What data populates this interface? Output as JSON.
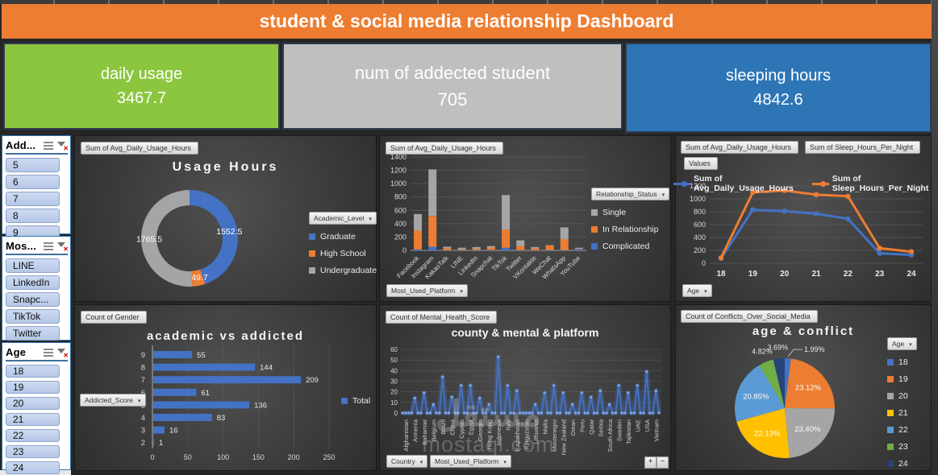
{
  "banner": {
    "title": "student & social media relationship Dashboard"
  },
  "kpis": [
    {
      "label": "daily usage",
      "value": "3467.7",
      "color": "#8CC63F"
    },
    {
      "label": "num of addected student",
      "value": "705",
      "color": "#BFBFBF"
    },
    {
      "label": "sleeping hours",
      "value": "4842.6",
      "color": "#2E75B6"
    }
  ],
  "slicers": [
    {
      "title": "Add...",
      "items": [
        "5",
        "6",
        "7",
        "8",
        "9"
      ]
    },
    {
      "title": "Mos...",
      "items": [
        "LINE",
        "LinkedIn",
        "Snapc...",
        "TikTok",
        "Twitter"
      ]
    },
    {
      "title": "Age",
      "items": [
        "18",
        "19",
        "20",
        "21",
        "22",
        "23",
        "24"
      ]
    }
  ],
  "ui": {
    "zoom_in": "+",
    "zoom_out": "−"
  },
  "watermark": {
    "text_primary": "مستقل",
    "text_secondary": "mostaql.com"
  },
  "chart_data": [
    {
      "type": "pie",
      "subtype": "donut",
      "title": "Usage Hours",
      "field_button": "Sum of Avg_Daily_Usage_Hours",
      "legend_title": "Academic_Level",
      "legend_position": "right",
      "labels": [
        "Graduate",
        "High School",
        "Undergraduate"
      ],
      "values": [
        1552.5,
        149.7,
        1765.5
      ],
      "value_labels": [
        "1552.5",
        "149.7",
        "1765.5"
      ],
      "colors": [
        "#4472C4",
        "#ED7D31",
        "#A5A5A5"
      ]
    },
    {
      "type": "bar",
      "subtype": "stacked-column",
      "field_button": "Sum of Avg_Daily_Usage_Hours",
      "axis_button": "Most_Used_Platform",
      "legend_title": "Relationship_Status",
      "legend_position": "right",
      "categories": [
        "Facebook",
        "Instagram",
        "KakaoTalk",
        "LINE",
        "LinkedIn",
        "Snapchat",
        "TikTok",
        "Twitter",
        "VKontakte",
        "WeChat",
        "WhatsApp",
        "YouTube"
      ],
      "series": [
        {
          "name": "Complicated",
          "color": "#4472C4",
          "values": [
            15,
            55,
            5,
            3,
            5,
            8,
            40,
            5,
            5,
            5,
            5,
            20
          ]
        },
        {
          "name": "In Relationship",
          "color": "#ED7D31",
          "values": [
            280,
            460,
            30,
            12,
            20,
            35,
            270,
            60,
            25,
            70,
            165,
            5
          ]
        },
        {
          "name": "Single",
          "color": "#A5A5A5",
          "values": [
            250,
            700,
            20,
            25,
            25,
            22,
            520,
            85,
            20,
            5,
            175,
            15
          ]
        }
      ],
      "ylim": [
        0,
        1400
      ],
      "ystep": 200,
      "grid": true
    },
    {
      "type": "line",
      "field_buttons": [
        "Sum of Avg_Daily_Usage_Hours",
        "Sum of Sleep_Hours_Per_Night"
      ],
      "values_button": "Values",
      "axis_button": "Age",
      "legend_position": "top",
      "categories": [
        "18",
        "19",
        "20",
        "21",
        "22",
        "23",
        "24"
      ],
      "series": [
        {
          "name": "Sum of Avg_Daily_Usage_Hours",
          "color": "#4472C4",
          "values": [
            75,
            830,
            810,
            770,
            690,
            155,
            130
          ]
        },
        {
          "name": "Sum of Sleep_Hours_Per_Night",
          "color": "#ED7D31",
          "values": [
            85,
            1100,
            1130,
            1065,
            1040,
            235,
            180
          ]
        }
      ],
      "ylim": [
        0,
        1200
      ],
      "ystep": 200,
      "grid": true
    },
    {
      "type": "bar",
      "subtype": "horizontal",
      "title": "academic vs addicted",
      "field_button": "Count of Gender",
      "axis_button": "Addicted_Score",
      "legend": [
        "Total"
      ],
      "legend_position": "right",
      "categories": [
        "9",
        "8",
        "7",
        "6",
        "5",
        "4",
        "3",
        "2"
      ],
      "values": [
        55,
        144,
        209,
        61,
        136,
        83,
        16,
        1
      ],
      "value_labels": [
        "55",
        "144",
        "209",
        "61",
        "136",
        "83",
        "16",
        "1"
      ],
      "color": "#4472C4",
      "xlim": [
        0,
        250
      ],
      "xstep": 50,
      "grid": true
    },
    {
      "type": "line",
      "subtype": "spiky-glow",
      "title": "county & mental & platform",
      "field_button": "Count of Mental_Health_Score",
      "axis_buttons": [
        "Country",
        "Most_Used_Platform"
      ],
      "categories": [
        "Afghanistan",
        "Armenia",
        "Bahamas",
        "Belgium",
        "Brazil",
        "China",
        "Cyprus",
        "Egypt",
        "Georgia",
        "Hong Kong",
        "Indonesia",
        "Italy",
        "Kazakhstan",
        "Kyrgyzstan",
        "Lithuania",
        "Malta",
        "Montenegro",
        "New Zealand",
        "Oman",
        "Peru",
        "Qatar",
        "Serbia",
        "South Africa",
        "Sweden",
        "Tajikistan",
        "UAE",
        "USA",
        "Vietnam"
      ],
      "peak_values": [
        0,
        14,
        19,
        8,
        34,
        15,
        26,
        26,
        14,
        8,
        53,
        26,
        21,
        0,
        8,
        19,
        26,
        19,
        8,
        19,
        15,
        21,
        8,
        26,
        19,
        26,
        39,
        21
      ],
      "color": "#4472C4",
      "ylim": [
        0,
        60
      ],
      "ystep": 10,
      "grid": true
    },
    {
      "type": "pie",
      "title": "age & conflict",
      "field_button": "Count of Conflicts_Over_Social_Media",
      "legend_title": "Age",
      "legend_position": "right",
      "labels": [
        "18",
        "19",
        "20",
        "21",
        "22",
        "23",
        "24"
      ],
      "values": [
        1.99,
        23.12,
        23.4,
        22.13,
        20.85,
        4.82,
        3.69
      ],
      "value_labels": [
        "1.99%",
        "23.12%",
        "23.40%",
        "22.13%",
        "20.85%",
        "4.82%",
        "3.69%"
      ],
      "colors": [
        "#4472C4",
        "#ED7D31",
        "#A5A5A5",
        "#FFC000",
        "#5B9BD5",
        "#70AD47",
        "#264478"
      ]
    }
  ]
}
